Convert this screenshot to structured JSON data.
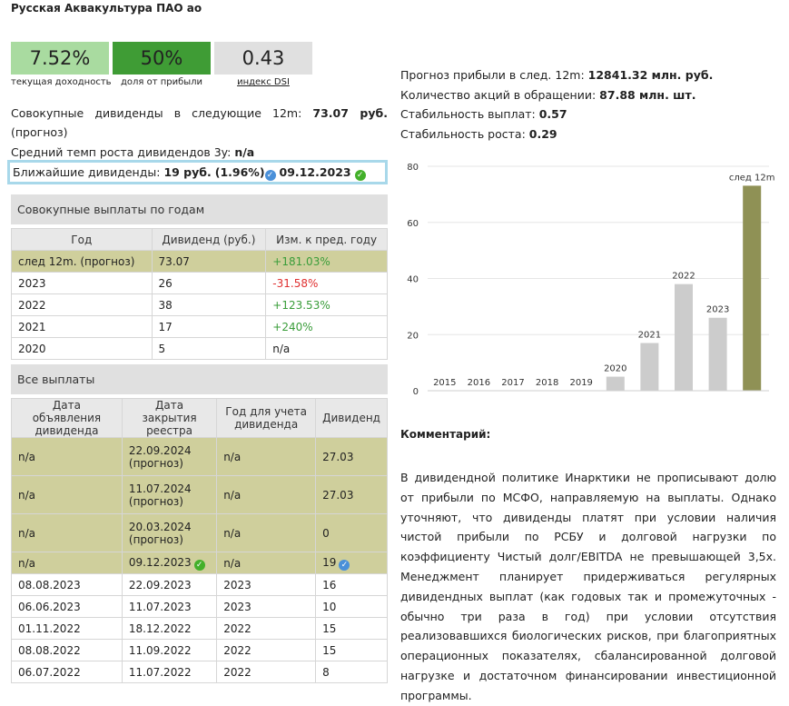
{
  "title": "Русская Аквакультура ПАО ао",
  "kpis": [
    {
      "value": "7.52%",
      "label": "текущая доходность",
      "color": "#a9dba0"
    },
    {
      "value": "50%",
      "label": "доля от прибыли",
      "color": "#3f9c35"
    },
    {
      "value": "0.43",
      "label": "индекс DSI",
      "color": "#e0e0e0"
    }
  ],
  "summary": {
    "total_div_prefix": "Совокупные дивиденды в следующие 12m:",
    "total_div_value": "73.07 руб.",
    "total_div_suffix": "(прогноз)",
    "growth_label": "Средний темп роста дивидендов 3y:",
    "growth_value": "n/a",
    "near_label": "Ближайшие дивиденды:",
    "near_amount": "19 руб.",
    "near_pct": "(1.96%)",
    "near_date": "09.12.2023"
  },
  "yearly": {
    "heading": "Совокупные выплаты по годам",
    "headers": [
      "Год",
      "Дивиденд (руб.)",
      "Изм. к пред. году"
    ],
    "rows": [
      {
        "year": "след 12m. (прогноз)",
        "div": "73.07",
        "chg": "+181.03%",
        "sign": "pos",
        "hl": true
      },
      {
        "year": "2023",
        "div": "26",
        "chg": "-31.58%",
        "sign": "neg",
        "hl": false
      },
      {
        "year": "2022",
        "div": "38",
        "chg": "+123.53%",
        "sign": "pos",
        "hl": false
      },
      {
        "year": "2021",
        "div": "17",
        "chg": "+240%",
        "sign": "pos",
        "hl": false
      },
      {
        "year": "2020",
        "div": "5",
        "chg": "n/a",
        "sign": "",
        "hl": false
      }
    ]
  },
  "payments": {
    "heading": "Все выплаты",
    "headers": [
      "Дата объявления дивиденда",
      "Дата закрытия реестра",
      "Год для учета дивиденда",
      "Дивиденд"
    ],
    "rows": [
      {
        "announce": "n/a",
        "close": "22.09.2024 (прогноз)",
        "year": "n/a",
        "div": "27.03",
        "hl": true
      },
      {
        "announce": "n/a",
        "close": "11.07.2024 (прогноз)",
        "year": "n/a",
        "div": "27.03",
        "hl": true
      },
      {
        "announce": "n/a",
        "close": "20.03.2024 (прогноз)",
        "year": "n/a",
        "div": "0",
        "hl": true
      },
      {
        "announce": "n/a",
        "close": "09.12.2023",
        "year": "n/a",
        "div": "19",
        "hl": true,
        "close_icon": "green-check-icon",
        "div_icon": "blue-check-icon"
      },
      {
        "announce": "08.08.2023",
        "close": "22.09.2023",
        "year": "2023",
        "div": "16",
        "hl": false
      },
      {
        "announce": "06.06.2023",
        "close": "11.07.2023",
        "year": "2023",
        "div": "10",
        "hl": false
      },
      {
        "announce": "01.11.2022",
        "close": "18.12.2022",
        "year": "2022",
        "div": "15",
        "hl": false
      },
      {
        "announce": "08.08.2022",
        "close": "11.09.2022",
        "year": "2022",
        "div": "15",
        "hl": false
      },
      {
        "announce": "06.07.2022",
        "close": "11.07.2022",
        "year": "2022",
        "div": "8",
        "hl": false
      }
    ]
  },
  "stats": [
    {
      "label": "Прогноз прибыли в след. 12m:",
      "value": "12841.32 млн. руб."
    },
    {
      "label": "Количество акций в обращении:",
      "value": "87.88 млн. шт."
    },
    {
      "label": "Стабильность выплат:",
      "value": "0.57"
    },
    {
      "label": "Стабильность роста:",
      "value": "0.29"
    }
  ],
  "chart_data": {
    "type": "bar",
    "categories": [
      "2015",
      "2016",
      "2017",
      "2018",
      "2019",
      "2020",
      "2021",
      "2022",
      "2023",
      "след 12m"
    ],
    "values": [
      0,
      0,
      0,
      0,
      0,
      5,
      17,
      38,
      26,
      73.07
    ],
    "ylim": [
      0,
      80
    ],
    "yticks": [
      0,
      20,
      40,
      60,
      80
    ],
    "grid": true,
    "bar_color": "#cccccc",
    "highlight_color": "#8f9155",
    "highlight_index": 9
  },
  "comment": {
    "title": "Комментарий:",
    "text": "В дивидендной политике Инарктики не прописывают долю от прибыли по МСФО, направляемую на выплаты. Однако уточняют, что дивиденды платят при условии наличия чистой прибыли по РСБУ и долговой нагрузки по коэффициенту Чистый долг/EBITDA не превышающей 3,5x. Менеджмент планирует придерживаться регулярных дивидендных выплат (как годовых так и промежуточных - обычно три раза в год) при условии отсутствия реализовавшихся биологических рисков, при благоприятных операционных показателях, сбалансированной долговой нагрузке и достаточном финансировании инвестиционной программы."
  }
}
